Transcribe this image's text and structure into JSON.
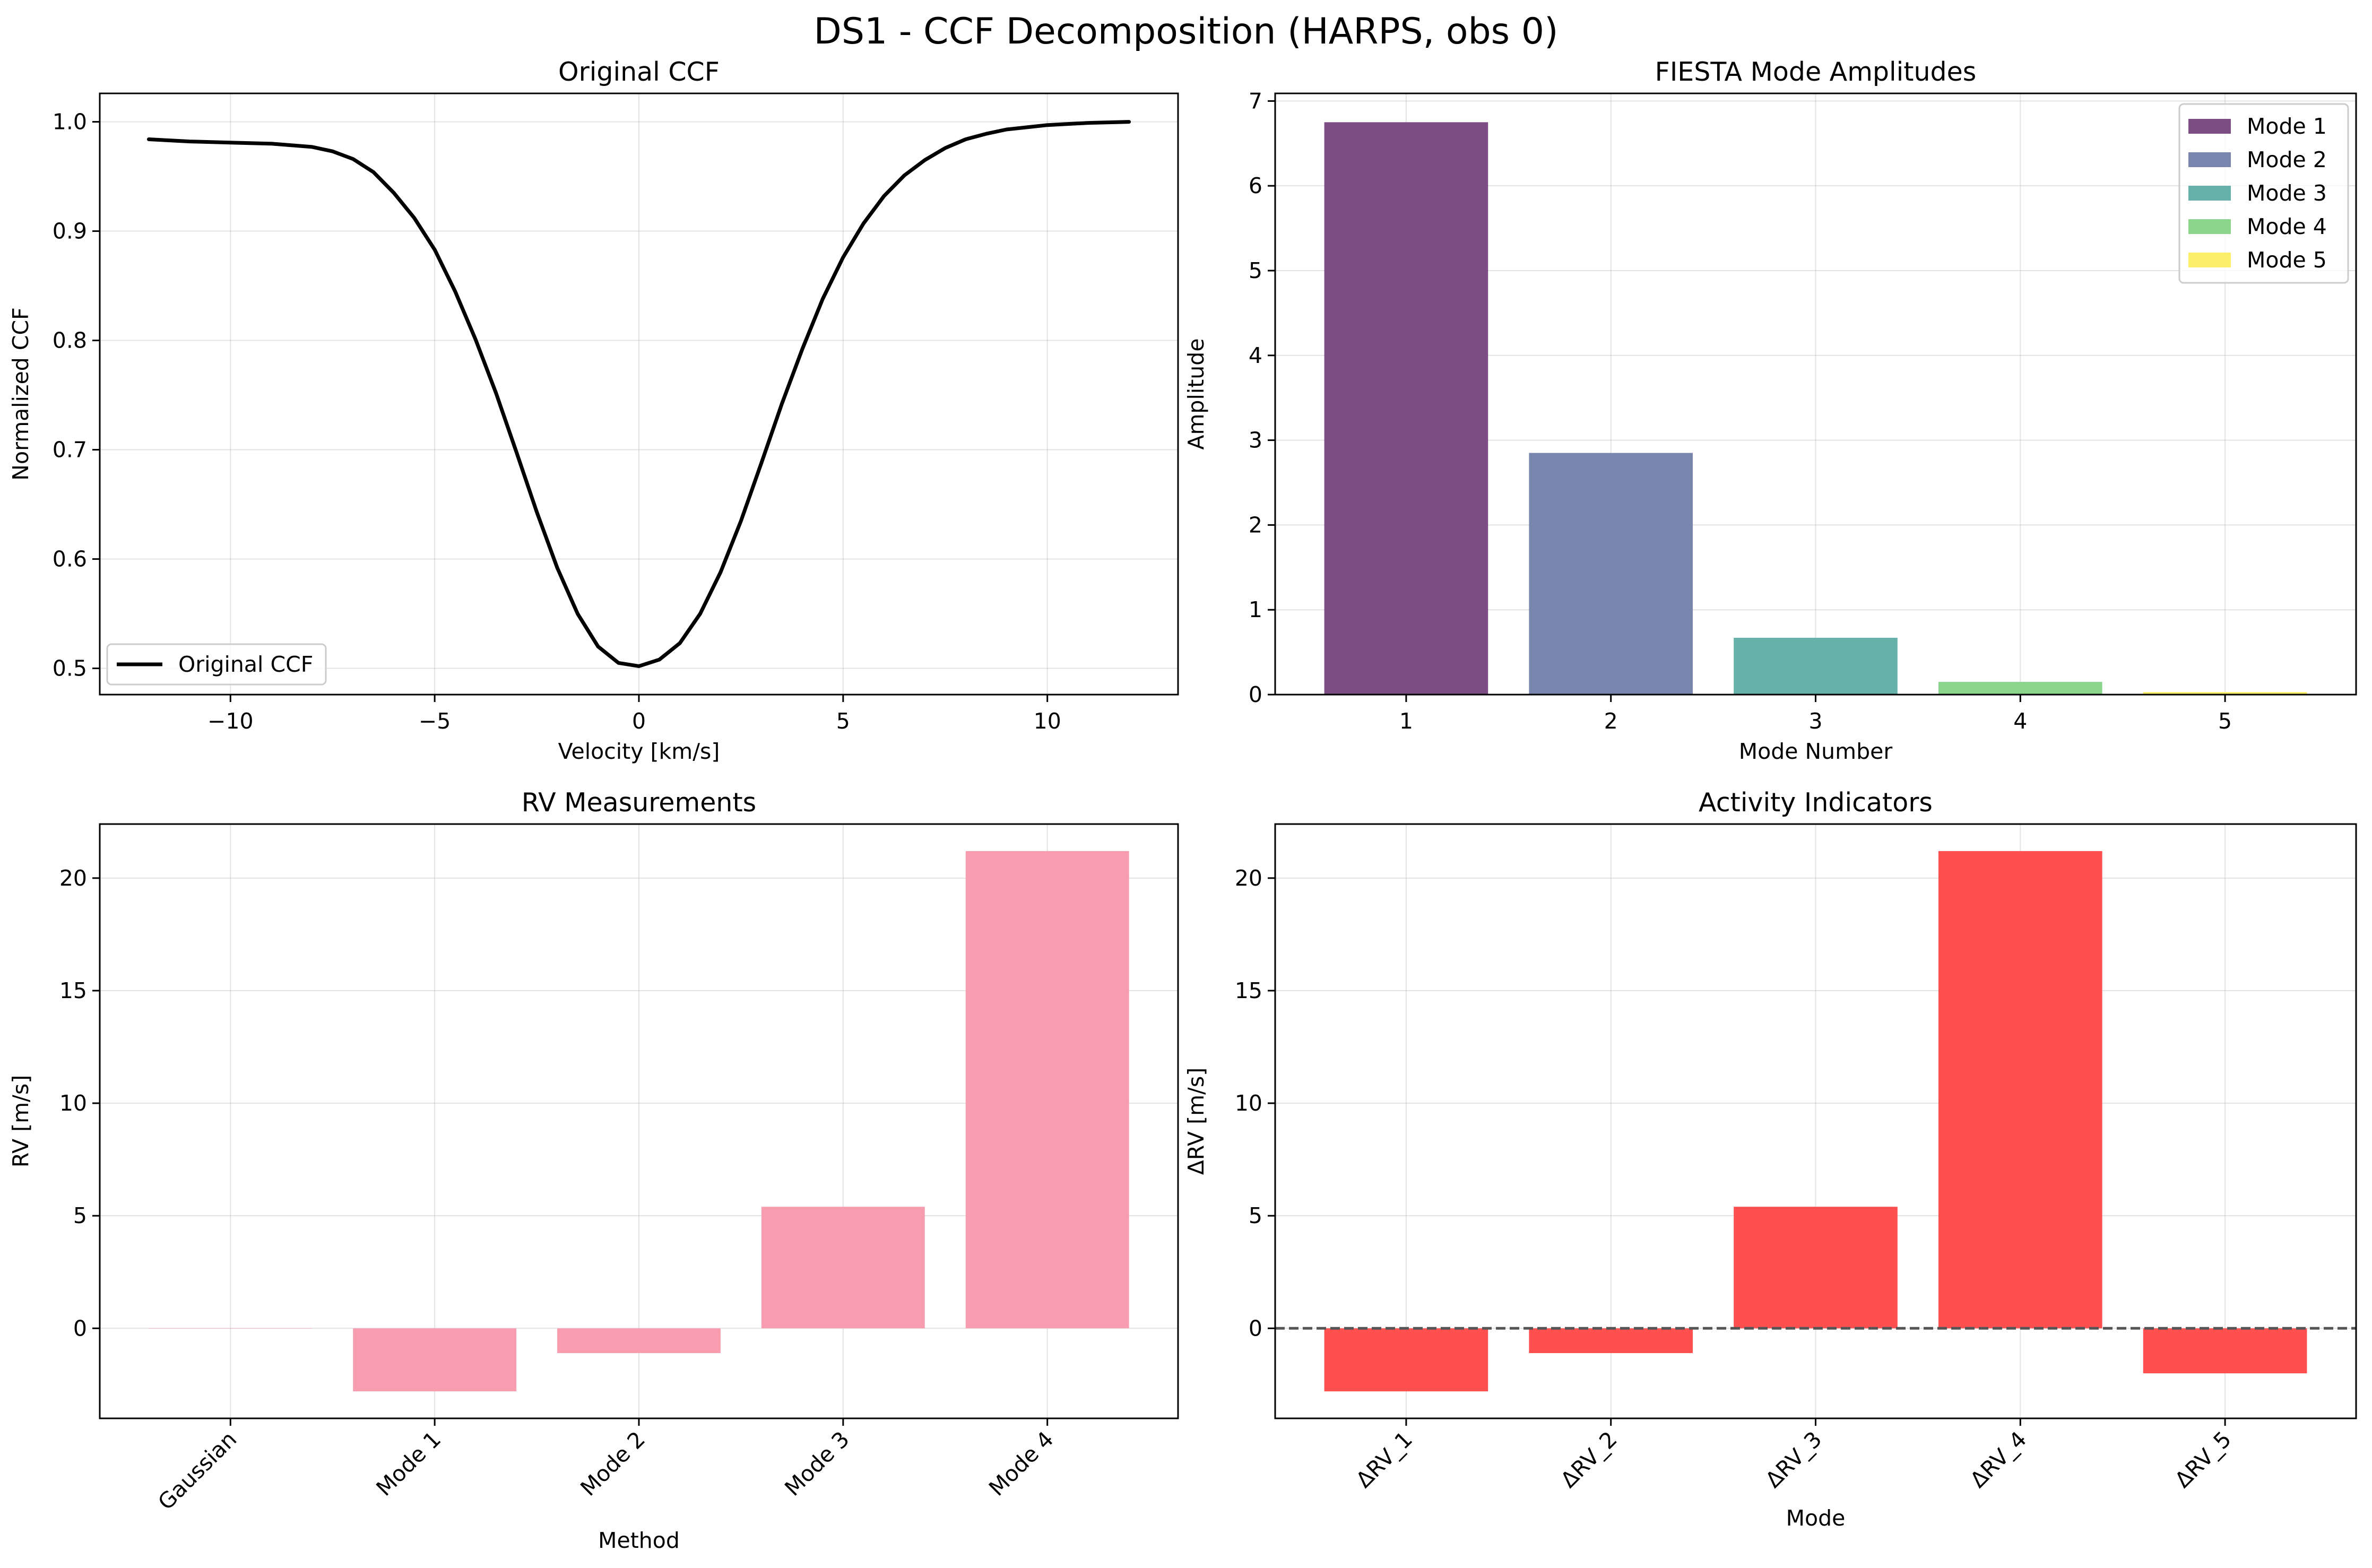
{
  "figure": {
    "suptitle": "DS1 - CCF Decomposition (HARPS, obs 0)"
  },
  "chart_data": [
    {
      "type": "line",
      "title": "Original CCF",
      "xlabel": "Velocity [km/s]",
      "ylabel": "Normalized CCF",
      "xlim": [
        -13.2,
        13.2
      ],
      "ylim": [
        0.476,
        1.026
      ],
      "xticks": [
        -10,
        -5,
        0,
        5,
        10
      ],
      "xtick_labels": [
        "−10",
        "−5",
        "0",
        "5",
        "10"
      ],
      "yticks": [
        0.5,
        0.6,
        0.7,
        0.8,
        0.9,
        1.0
      ],
      "ytick_labels": [
        "0.5",
        "0.6",
        "0.7",
        "0.8",
        "0.9",
        "1.0"
      ],
      "grid": true,
      "legend": "lower-left",
      "series": [
        {
          "name": "Original CCF",
          "color": "#000000",
          "x": [
            -12,
            -11,
            -10,
            -9,
            -8,
            -7.5,
            -7,
            -6.5,
            -6,
            -5.5,
            -5,
            -4.5,
            -4,
            -3.5,
            -3,
            -2.5,
            -2,
            -1.5,
            -1,
            -0.5,
            0,
            0.5,
            1,
            1.5,
            2,
            2.5,
            3,
            3.5,
            4,
            4.5,
            5,
            5.5,
            6,
            6.5,
            7,
            7.5,
            8,
            8.5,
            9,
            9.5,
            10,
            11,
            12
          ],
          "y": [
            0.984,
            0.982,
            0.981,
            0.98,
            0.977,
            0.973,
            0.966,
            0.954,
            0.935,
            0.912,
            0.883,
            0.845,
            0.801,
            0.752,
            0.698,
            0.643,
            0.592,
            0.55,
            0.52,
            0.505,
            0.502,
            0.508,
            0.523,
            0.55,
            0.588,
            0.635,
            0.688,
            0.742,
            0.792,
            0.838,
            0.876,
            0.907,
            0.932,
            0.951,
            0.965,
            0.976,
            0.984,
            0.989,
            0.993,
            0.995,
            0.997,
            0.999,
            1.0
          ]
        }
      ]
    },
    {
      "type": "bar",
      "title": "FIESTA Mode Amplitudes",
      "xlabel": "Mode Number",
      "ylabel": "Amplitude",
      "categories": [
        "1",
        "2",
        "3",
        "4",
        "5"
      ],
      "values": [
        6.75,
        2.85,
        0.67,
        0.15,
        0.03
      ],
      "colors": [
        "#7b4d83",
        "#7886ae",
        "#66b1aa",
        "#8cd58c",
        "#fdee6a"
      ],
      "legend_labels": [
        "Mode 1",
        "Mode 2",
        "Mode 3",
        "Mode 4",
        "Mode 5"
      ],
      "legend": "upper-right",
      "ylim": [
        0,
        7.09
      ],
      "yticks": [
        0,
        1,
        2,
        3,
        4,
        5,
        6,
        7
      ],
      "ytick_labels": [
        "0",
        "1",
        "2",
        "3",
        "4",
        "5",
        "6",
        "7"
      ],
      "grid": true
    },
    {
      "type": "bar",
      "title": "RV Measurements",
      "xlabel": "Method",
      "ylabel": "RV [m/s]",
      "categories": [
        "Gaussian",
        "Mode 1",
        "Mode 2",
        "Mode 3",
        "Mode 4"
      ],
      "values": [
        0,
        -2.8,
        -1.1,
        5.4,
        21.2
      ],
      "color": "#f89db0",
      "ylim": [
        -4.0,
        22.4
      ],
      "yticks": [
        0,
        5,
        10,
        15,
        20
      ],
      "ytick_labels": [
        "0",
        "5",
        "10",
        "15",
        "20"
      ],
      "grid": true
    },
    {
      "type": "bar",
      "title": "Activity Indicators",
      "xlabel": "Mode",
      "ylabel": "ΔRV [m/s]",
      "categories": [
        "ΔRV_1",
        "ΔRV_2",
        "ΔRV_3",
        "ΔRV_4",
        "ΔRV_5"
      ],
      "values": [
        -2.8,
        -1.1,
        5.4,
        21.2,
        -2.0
      ],
      "color": "#ff4f4f",
      "ylim": [
        -4.0,
        22.4
      ],
      "yticks": [
        0,
        5,
        10,
        15,
        20
      ],
      "ytick_labels": [
        "0",
        "5",
        "10",
        "15",
        "20"
      ],
      "zero_line": true,
      "grid": true
    }
  ]
}
